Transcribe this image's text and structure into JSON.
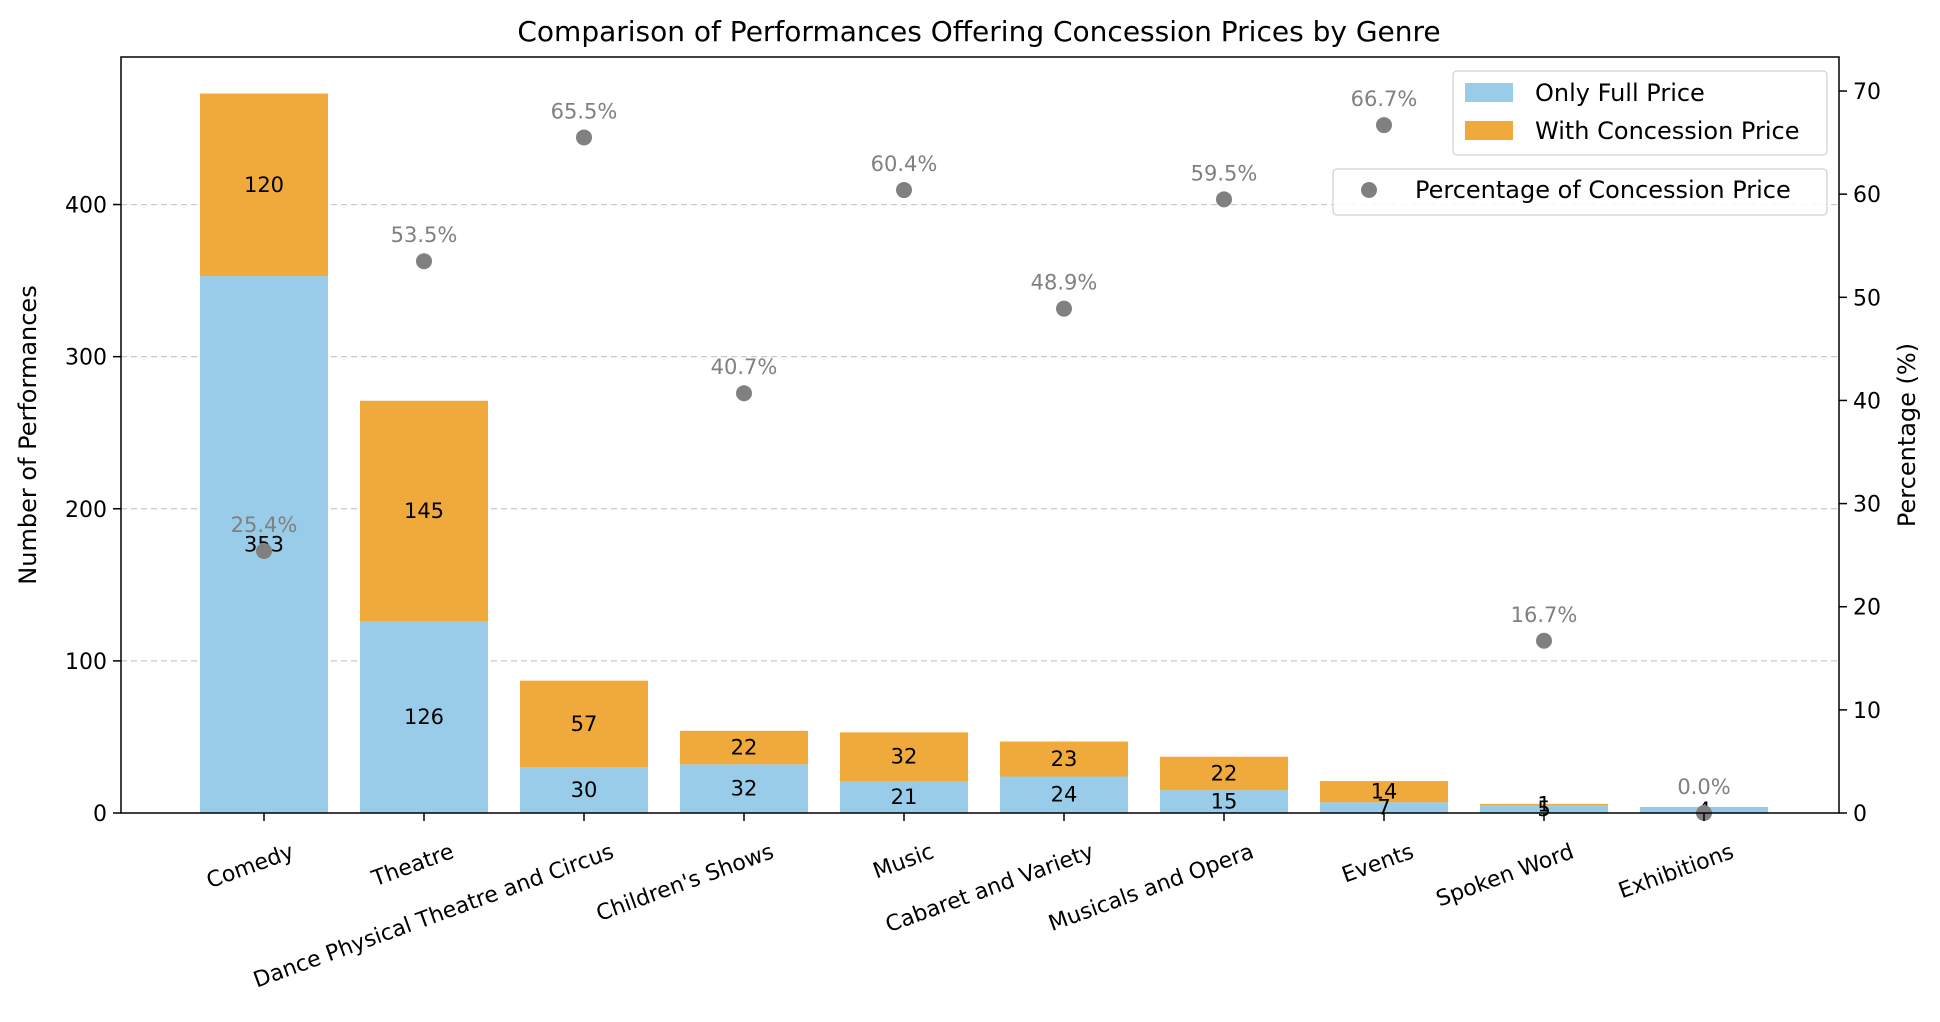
{
  "chart_data": {
    "type": "bar",
    "stacked": true,
    "title": "Comparison of Performances Offering Concession Prices by Genre",
    "ylabel": "Number of Performances",
    "y2label": "Percentage (%)",
    "ylim": [
      0,
      497
    ],
    "y2lim": [
      0,
      73.3
    ],
    "yticks": [
      0,
      100,
      200,
      300,
      400
    ],
    "y2ticks": [
      0,
      10,
      20,
      30,
      40,
      50,
      60,
      70
    ],
    "grid": "y-dashed",
    "categories": [
      "Comedy",
      "Theatre",
      "Dance Physical Theatre and Circus",
      "Children's Shows",
      "Music",
      "Cabaret and Variety",
      "Musicals and Opera",
      "Events",
      "Spoken Word",
      "Exhibitions"
    ],
    "series": [
      {
        "name": "Only Full Price",
        "color": "#99cce8",
        "values": [
          353,
          126,
          30,
          32,
          21,
          24,
          15,
          7,
          5,
          4
        ]
      },
      {
        "name": "With Concession Price",
        "color": "#f0a93b",
        "values": [
          120,
          145,
          57,
          22,
          32,
          23,
          22,
          14,
          1,
          0
        ]
      }
    ],
    "percentage_series": {
      "name": "Percentage of Concession Price",
      "color": "#808080",
      "values": [
        25.4,
        53.5,
        65.5,
        40.7,
        60.4,
        48.9,
        59.5,
        66.7,
        16.7,
        0.0
      ],
      "labels": [
        "25.4%",
        "53.5%",
        "65.5%",
        "40.7%",
        "60.4%",
        "48.9%",
        "59.5%",
        "66.7%",
        "16.7%",
        "0.0%"
      ]
    },
    "bar_labels": {
      "full": [
        "353",
        "126",
        "30",
        "32",
        "21",
        "24",
        "15",
        "7",
        "5",
        "4"
      ],
      "concession": [
        "120",
        "145",
        "57",
        "22",
        "32",
        "23",
        "22",
        "14",
        "1",
        ""
      ]
    },
    "legend_position": "top-right"
  }
}
